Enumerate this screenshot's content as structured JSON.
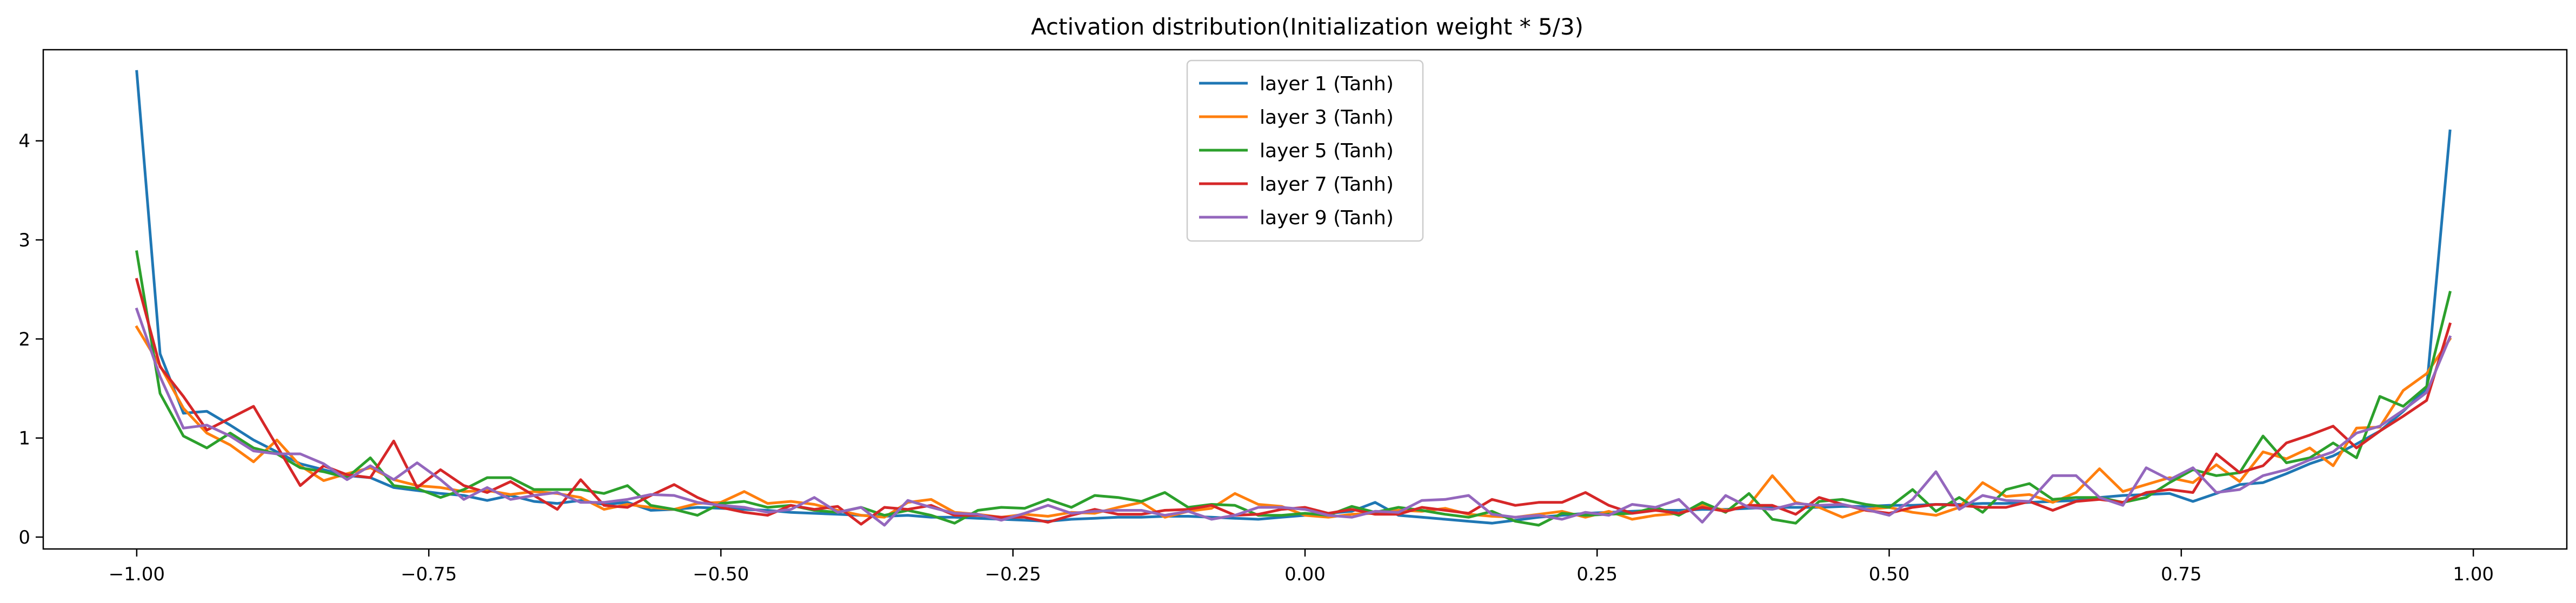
{
  "chart_data": {
    "type": "line",
    "title": "Activation distribution(Initialization weight * 5/3)",
    "xlabel": "",
    "ylabel": "",
    "xlim": [
      -1.08,
      1.08
    ],
    "ylim": [
      -0.12,
      4.92
    ],
    "xticks": [
      -1.0,
      -0.75,
      -0.5,
      -0.25,
      0.0,
      0.25,
      0.5,
      0.75,
      1.0
    ],
    "xtick_labels": [
      "−1.00",
      "−0.75",
      "−0.50",
      "−0.25",
      "0.00",
      "0.25",
      "0.50",
      "0.75",
      "1.00"
    ],
    "yticks": [
      0,
      1,
      2,
      3,
      4
    ],
    "ytick_labels": [
      "0",
      "1",
      "2",
      "3",
      "4"
    ],
    "grid": false,
    "legend_position": "top-center",
    "x": [
      -1.0,
      -0.98,
      -0.96,
      -0.94,
      -0.92,
      -0.9,
      -0.88,
      -0.86,
      -0.84,
      -0.82,
      -0.8,
      -0.78,
      -0.76,
      -0.74,
      -0.72,
      -0.7,
      -0.68,
      -0.66,
      -0.64,
      -0.62,
      -0.6,
      -0.58,
      -0.56,
      -0.54,
      -0.52,
      -0.5,
      -0.48,
      -0.46,
      -0.44,
      -0.42,
      -0.4,
      -0.38,
      -0.36,
      -0.34,
      -0.32,
      -0.3,
      -0.28,
      -0.26,
      -0.24,
      -0.22,
      -0.2,
      -0.18,
      -0.16,
      -0.14,
      -0.12,
      -0.1,
      -0.08,
      -0.06,
      -0.04,
      -0.02,
      0.0,
      0.02,
      0.04,
      0.06,
      0.08,
      0.1,
      0.12,
      0.14,
      0.16,
      0.18,
      0.2,
      0.22,
      0.24,
      0.26,
      0.28,
      0.3,
      0.32,
      0.34,
      0.36,
      0.38,
      0.4,
      0.42,
      0.44,
      0.46,
      0.48,
      0.5,
      0.52,
      0.54,
      0.56,
      0.58,
      0.6,
      0.62,
      0.64,
      0.66,
      0.68,
      0.7,
      0.72,
      0.74,
      0.76,
      0.78,
      0.8,
      0.82,
      0.84,
      0.86,
      0.88,
      0.9,
      0.92,
      0.94,
      0.96,
      0.98
    ],
    "series": [
      {
        "name": "layer 1 (Tanh)",
        "color": "#1f77b4",
        "values": [
          4.7,
          1.85,
          1.25,
          1.27,
          1.13,
          0.98,
          0.86,
          0.74,
          0.68,
          0.62,
          0.6,
          0.5,
          0.47,
          0.44,
          0.42,
          0.37,
          0.42,
          0.36,
          0.34,
          0.37,
          0.33,
          0.35,
          0.27,
          0.28,
          0.3,
          0.29,
          0.28,
          0.27,
          0.25,
          0.24,
          0.23,
          0.22,
          0.21,
          0.22,
          0.2,
          0.2,
          0.19,
          0.18,
          0.17,
          0.16,
          0.18,
          0.19,
          0.2,
          0.2,
          0.21,
          0.21,
          0.2,
          0.19,
          0.18,
          0.2,
          0.22,
          0.24,
          0.26,
          0.35,
          0.22,
          0.2,
          0.18,
          0.16,
          0.14,
          0.17,
          0.2,
          0.22,
          0.24,
          0.25,
          0.26,
          0.27,
          0.27,
          0.28,
          0.28,
          0.29,
          0.3,
          0.3,
          0.3,
          0.31,
          0.31,
          0.32,
          0.32,
          0.33,
          0.33,
          0.34,
          0.34,
          0.35,
          0.36,
          0.37,
          0.4,
          0.42,
          0.43,
          0.44,
          0.36,
          0.44,
          0.53,
          0.55,
          0.64,
          0.74,
          0.82,
          0.94,
          1.07,
          1.27,
          1.5,
          4.1
        ]
      },
      {
        "name": "layer 3 (Tanh)",
        "color": "#ff7f0e",
        "values": [
          2.12,
          1.73,
          1.3,
          1.05,
          0.93,
          0.76,
          0.98,
          0.72,
          0.57,
          0.64,
          0.7,
          0.58,
          0.52,
          0.5,
          0.46,
          0.47,
          0.43,
          0.46,
          0.44,
          0.4,
          0.28,
          0.33,
          0.3,
          0.28,
          0.34,
          0.35,
          0.46,
          0.34,
          0.36,
          0.33,
          0.27,
          0.22,
          0.2,
          0.35,
          0.38,
          0.25,
          0.23,
          0.2,
          0.23,
          0.21,
          0.25,
          0.24,
          0.3,
          0.35,
          0.2,
          0.26,
          0.29,
          0.44,
          0.33,
          0.31,
          0.22,
          0.2,
          0.23,
          0.24,
          0.27,
          0.26,
          0.29,
          0.23,
          0.21,
          0.2,
          0.23,
          0.26,
          0.2,
          0.26,
          0.18,
          0.22,
          0.24,
          0.32,
          0.27,
          0.32,
          0.62,
          0.35,
          0.3,
          0.2,
          0.28,
          0.3,
          0.25,
          0.22,
          0.3,
          0.55,
          0.41,
          0.43,
          0.35,
          0.45,
          0.69,
          0.46,
          0.53,
          0.6,
          0.55,
          0.73,
          0.56,
          0.86,
          0.79,
          0.9,
          0.72,
          1.1,
          1.11,
          1.48,
          1.65,
          2.0
        ]
      },
      {
        "name": "layer 5 (Tanh)",
        "color": "#2ca02c",
        "values": [
          2.88,
          1.45,
          1.02,
          0.9,
          1.05,
          0.9,
          0.84,
          0.7,
          0.66,
          0.6,
          0.8,
          0.52,
          0.49,
          0.4,
          0.48,
          0.6,
          0.6,
          0.48,
          0.48,
          0.48,
          0.44,
          0.52,
          0.32,
          0.28,
          0.22,
          0.34,
          0.36,
          0.3,
          0.32,
          0.27,
          0.25,
          0.3,
          0.22,
          0.27,
          0.22,
          0.14,
          0.27,
          0.3,
          0.29,
          0.38,
          0.3,
          0.42,
          0.4,
          0.36,
          0.45,
          0.3,
          0.33,
          0.32,
          0.22,
          0.22,
          0.24,
          0.22,
          0.31,
          0.25,
          0.3,
          0.27,
          0.23,
          0.2,
          0.26,
          0.16,
          0.12,
          0.24,
          0.22,
          0.23,
          0.24,
          0.3,
          0.22,
          0.35,
          0.25,
          0.44,
          0.18,
          0.14,
          0.36,
          0.38,
          0.33,
          0.3,
          0.48,
          0.26,
          0.4,
          0.25,
          0.48,
          0.54,
          0.38,
          0.4,
          0.4,
          0.35,
          0.4,
          0.55,
          0.68,
          0.62,
          0.65,
          1.02,
          0.75,
          0.8,
          0.95,
          0.8,
          1.42,
          1.32,
          1.52,
          2.47
        ]
      },
      {
        "name": "layer 7 (Tanh)",
        "color": "#d62728",
        "values": [
          2.6,
          1.72,
          1.42,
          1.08,
          1.2,
          1.32,
          0.92,
          0.52,
          0.72,
          0.63,
          0.6,
          0.97,
          0.5,
          0.68,
          0.52,
          0.45,
          0.56,
          0.42,
          0.28,
          0.58,
          0.32,
          0.3,
          0.42,
          0.53,
          0.4,
          0.3,
          0.25,
          0.22,
          0.32,
          0.28,
          0.31,
          0.13,
          0.3,
          0.28,
          0.32,
          0.22,
          0.22,
          0.2,
          0.2,
          0.15,
          0.22,
          0.28,
          0.23,
          0.23,
          0.27,
          0.28,
          0.32,
          0.22,
          0.23,
          0.28,
          0.3,
          0.24,
          0.28,
          0.23,
          0.23,
          0.3,
          0.27,
          0.24,
          0.38,
          0.32,
          0.35,
          0.35,
          0.45,
          0.32,
          0.24,
          0.27,
          0.24,
          0.3,
          0.26,
          0.32,
          0.32,
          0.23,
          0.4,
          0.33,
          0.27,
          0.24,
          0.3,
          0.33,
          0.32,
          0.3,
          0.3,
          0.36,
          0.27,
          0.36,
          0.38,
          0.35,
          0.45,
          0.48,
          0.45,
          0.84,
          0.65,
          0.72,
          0.95,
          1.03,
          1.12,
          0.9,
          1.07,
          1.22,
          1.38,
          2.15
        ]
      },
      {
        "name": "layer 9 (Tanh)",
        "color": "#9467bd",
        "values": [
          2.3,
          1.62,
          1.1,
          1.13,
          1.02,
          0.87,
          0.84,
          0.84,
          0.74,
          0.58,
          0.72,
          0.58,
          0.75,
          0.58,
          0.38,
          0.5,
          0.38,
          0.42,
          0.45,
          0.35,
          0.35,
          0.38,
          0.43,
          0.42,
          0.35,
          0.32,
          0.3,
          0.25,
          0.28,
          0.4,
          0.25,
          0.3,
          0.12,
          0.37,
          0.3,
          0.24,
          0.23,
          0.17,
          0.24,
          0.32,
          0.24,
          0.26,
          0.27,
          0.27,
          0.22,
          0.26,
          0.18,
          0.22,
          0.3,
          0.3,
          0.28,
          0.22,
          0.2,
          0.26,
          0.25,
          0.37,
          0.38,
          0.42,
          0.23,
          0.2,
          0.22,
          0.18,
          0.25,
          0.22,
          0.33,
          0.3,
          0.38,
          0.15,
          0.42,
          0.3,
          0.28,
          0.34,
          0.32,
          0.33,
          0.28,
          0.22,
          0.38,
          0.66,
          0.28,
          0.42,
          0.37,
          0.36,
          0.62,
          0.62,
          0.4,
          0.32,
          0.7,
          0.58,
          0.7,
          0.45,
          0.48,
          0.62,
          0.68,
          0.78,
          0.86,
          1.05,
          1.12,
          1.28,
          1.46,
          2.02
        ]
      }
    ]
  }
}
